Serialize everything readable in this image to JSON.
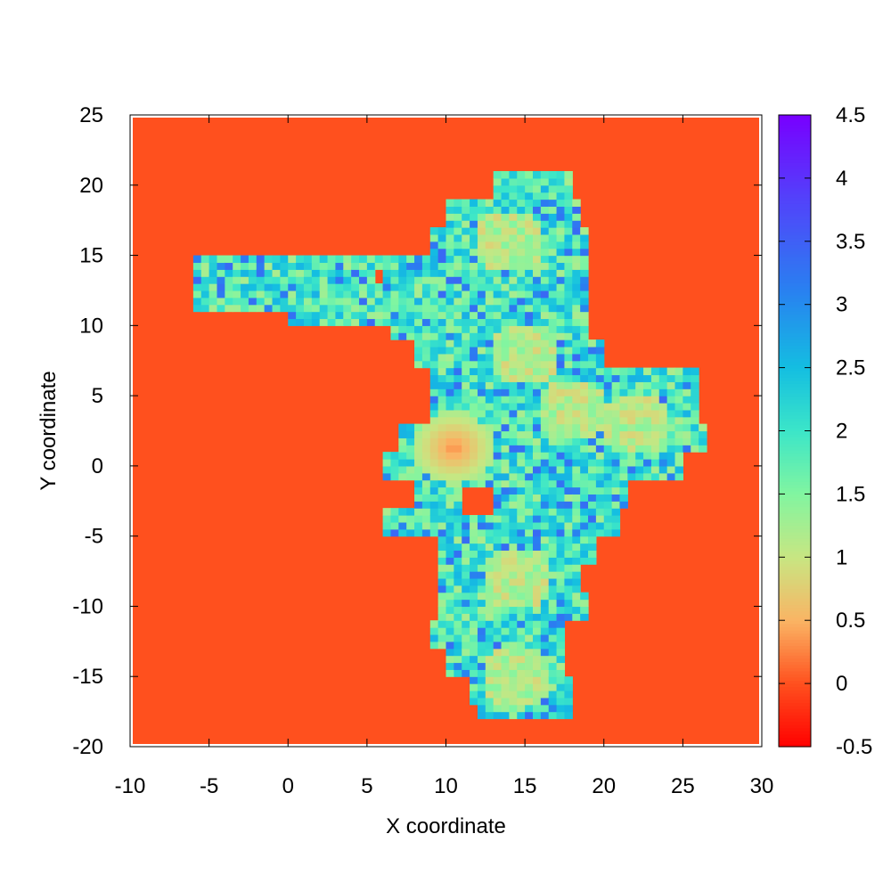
{
  "chart_data": {
    "type": "heatmap",
    "title": "",
    "xlabel": "X coordinate",
    "ylabel": "Y coordinate",
    "xlim": [
      -10,
      30
    ],
    "ylim": [
      -20,
      25
    ],
    "xticks": [
      -10,
      -5,
      0,
      5,
      10,
      15,
      20,
      25,
      30
    ],
    "yticks": [
      -20,
      -15,
      -10,
      -5,
      0,
      5,
      10,
      15,
      20,
      25
    ],
    "xtick_labels": [
      "-10",
      "-5",
      "0",
      "5",
      "10",
      "15",
      "20",
      "25",
      "30"
    ],
    "ytick_labels": [
      "-20",
      "-15",
      "-10",
      "-5",
      "0",
      "5",
      "10",
      "15",
      "20",
      "25"
    ],
    "colorbar": {
      "range": [
        -0.5,
        4.5
      ],
      "ticks": [
        -0.5,
        0,
        0.5,
        1,
        1.5,
        2,
        2.5,
        3,
        3.5,
        4,
        4.5
      ],
      "tick_labels": [
        "-0.5",
        "0",
        "0.5",
        "1",
        "1.5",
        "2",
        "2.5",
        "3",
        "3.5",
        "4",
        "4.5"
      ],
      "palette": "rainbow"
    },
    "background_value": 0,
    "cell_size": 0.5,
    "grid": false,
    "region_description_values": {
      "region_boundary_y_ranges": [
        [
          -18,
          -17,
          12,
          18
        ],
        [
          -17,
          -15,
          11.5,
          18
        ],
        [
          -15,
          -13,
          10,
          17.5
        ],
        [
          -13,
          -11,
          9,
          17.5
        ],
        [
          -11,
          -9,
          9.5,
          19
        ],
        [
          -9,
          -7,
          9.5,
          18.5
        ],
        [
          -7,
          -5,
          9.5,
          19.5
        ],
        [
          -5,
          -3,
          6,
          21
        ],
        [
          -3,
          -1,
          8,
          21.5
        ],
        [
          -1,
          1,
          6,
          25
        ],
        [
          1,
          3,
          7,
          26.5
        ],
        [
          3,
          5,
          9,
          26
        ],
        [
          5,
          7,
          9,
          26
        ],
        [
          7,
          9,
          8,
          20
        ],
        [
          9,
          11,
          6.5,
          19
        ],
        [
          11,
          13,
          5,
          19
        ],
        [
          13,
          15,
          6,
          19
        ],
        [
          15,
          17,
          9,
          19
        ],
        [
          17,
          19,
          10,
          18.5
        ],
        [
          19,
          21,
          13,
          18
        ],
        [
          11,
          14,
          -6,
          5
        ]
      ]
    }
  }
}
